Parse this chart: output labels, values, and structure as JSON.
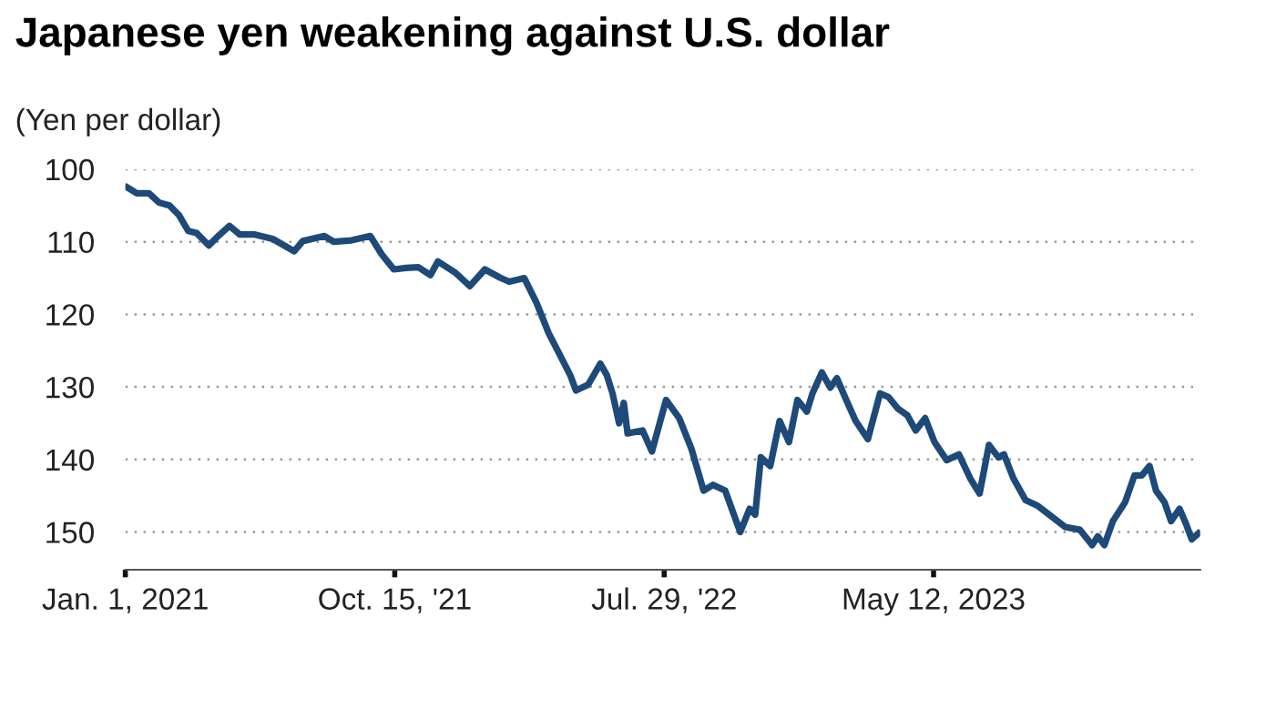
{
  "chart_data": {
    "type": "line",
    "title": "Japanese yen weakening against U.S. dollar",
    "ylabel": "(Yen per dollar)",
    "x": [
      "2021-01-03",
      "2021-01-13",
      "2021-01-26",
      "2021-02-06",
      "2021-02-17",
      "2021-02-27",
      "2021-03-09",
      "2021-03-18",
      "2021-03-31",
      "2021-04-10",
      "2021-04-22",
      "2021-05-03",
      "2021-05-19",
      "2021-06-07",
      "2021-06-30",
      "2021-07-09",
      "2021-08-01",
      "2021-08-11",
      "2021-08-30",
      "2021-09-19",
      "2021-10-01",
      "2021-10-14",
      "2021-10-27",
      "2021-11-09",
      "2021-11-22",
      "2021-11-30",
      "2021-12-18",
      "2022-01-03",
      "2022-01-19",
      "2022-02-05",
      "2022-02-14",
      "2022-03-02",
      "2022-03-15",
      "2022-03-28",
      "2022-04-07",
      "2022-04-20",
      "2022-04-26",
      "2022-05-09",
      "2022-05-22",
      "2022-05-29",
      "2022-06-04",
      "2022-06-11",
      "2022-06-16",
      "2022-06-20",
      "2022-07-06",
      "2022-07-16",
      "2022-07-31",
      "2022-08-14",
      "2022-08-27",
      "2022-09-09",
      "2022-09-19",
      "2022-10-02",
      "2022-10-18",
      "2022-10-28",
      "2022-11-03",
      "2022-11-09",
      "2022-11-19",
      "2022-11-29",
      "2022-12-09",
      "2022-12-18",
      "2022-12-28",
      "2023-01-03",
      "2023-01-13",
      "2023-01-22",
      "2023-01-29",
      "2023-02-08",
      "2023-02-18",
      "2023-03-03",
      "2023-03-16",
      "2023-03-25",
      "2023-04-04",
      "2023-04-14",
      "2023-04-23",
      "2023-05-03",
      "2023-05-13",
      "2023-05-26",
      "2023-06-08",
      "2023-06-20",
      "2023-06-30",
      "2023-07-10",
      "2023-07-20",
      "2023-07-26",
      "2023-08-05",
      "2023-08-18",
      "2023-08-31",
      "2023-09-13",
      "2023-09-29",
      "2023-10-15",
      "2023-10-28",
      "2023-11-03",
      "2023-11-10",
      "2023-11-19",
      "2023-12-02",
      "2023-12-12",
      "2023-12-20",
      "2023-12-28",
      "2024-01-04",
      "2024-01-13",
      "2024-01-20",
      "2024-01-29",
      "2024-02-05",
      "2024-02-11",
      "2024-02-18"
    ],
    "series": [
      {
        "color": "#1d4a78",
        "values": [
          102.5,
          103.3,
          103.3,
          104.6,
          105,
          106.3,
          108.5,
          108.8,
          110.5,
          109.2,
          107.8,
          109,
          109,
          109.6,
          111.3,
          109.9,
          109.2,
          110,
          109.8,
          109.2,
          111.7,
          113.8,
          113.6,
          113.5,
          114.6,
          112.7,
          114.2,
          116.1,
          113.8,
          115,
          115.5,
          115,
          118.4,
          122.6,
          125.1,
          128.4,
          130.5,
          129.7,
          126.8,
          128.4,
          130.9,
          135,
          132.2,
          136.4,
          136,
          138.9,
          131.8,
          134.3,
          138.5,
          144.3,
          143.5,
          144.3,
          150,
          146.8,
          147.6,
          139.7,
          140.9,
          134.7,
          137.6,
          131.8,
          133.4,
          130.9,
          128,
          130.1,
          128.8,
          131.8,
          134.7,
          137.2,
          130.9,
          131.4,
          133,
          133.9,
          136,
          134.3,
          137.6,
          140.1,
          139.3,
          142.6,
          144.7,
          138,
          139.7,
          139.3,
          142.6,
          145.6,
          146.4,
          147.7,
          149.3,
          149.7,
          151.8,
          150.6,
          151.8,
          148.5,
          145.9,
          142.2,
          142.2,
          140.9,
          144.3,
          145.9,
          148.5,
          146.8,
          148.9,
          151,
          150.2
        ]
      }
    ],
    "xlim": [
      "2021-01-01",
      "2024-02-20"
    ],
    "xticks": [
      {
        "value": "2021-01-01",
        "label": "Jan. 1, 2021"
      },
      {
        "value": "2021-10-15",
        "label": "Oct. 15, '21"
      },
      {
        "value": "2022-07-29",
        "label": "Jul. 29, '22"
      },
      {
        "value": "2023-05-12",
        "label": "May 12, 2023"
      }
    ],
    "ylim": [
      155.2,
      100
    ],
    "yticks": [
      100,
      110,
      120,
      130,
      140,
      150
    ],
    "grid": "y",
    "marker": "none",
    "line_style": "solid"
  }
}
